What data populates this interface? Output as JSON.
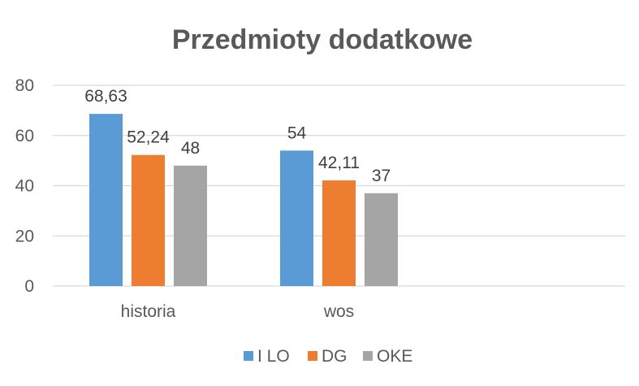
{
  "chart_data": {
    "type": "bar",
    "title": "Przedmioty dodatkowe",
    "categories": [
      "historia",
      "wos",
      ""
    ],
    "series": [
      {
        "name": "I LO",
        "color": "#5B9BD5",
        "values": [
          68.63,
          54,
          null
        ],
        "labels": [
          "68,63",
          "54",
          ""
        ]
      },
      {
        "name": "DG",
        "color": "#ED7D31",
        "values": [
          52.24,
          42.11,
          null
        ],
        "labels": [
          "52,24",
          "42,11",
          ""
        ]
      },
      {
        "name": "OKE",
        "color": "#A5A5A5",
        "values": [
          48,
          37,
          null
        ],
        "labels": [
          "48",
          "37",
          ""
        ]
      }
    ],
    "ylim": [
      0,
      80
    ],
    "yticks": [
      "0",
      "20",
      "40",
      "60",
      "80"
    ],
    "grid": true,
    "legend": "bottom"
  }
}
